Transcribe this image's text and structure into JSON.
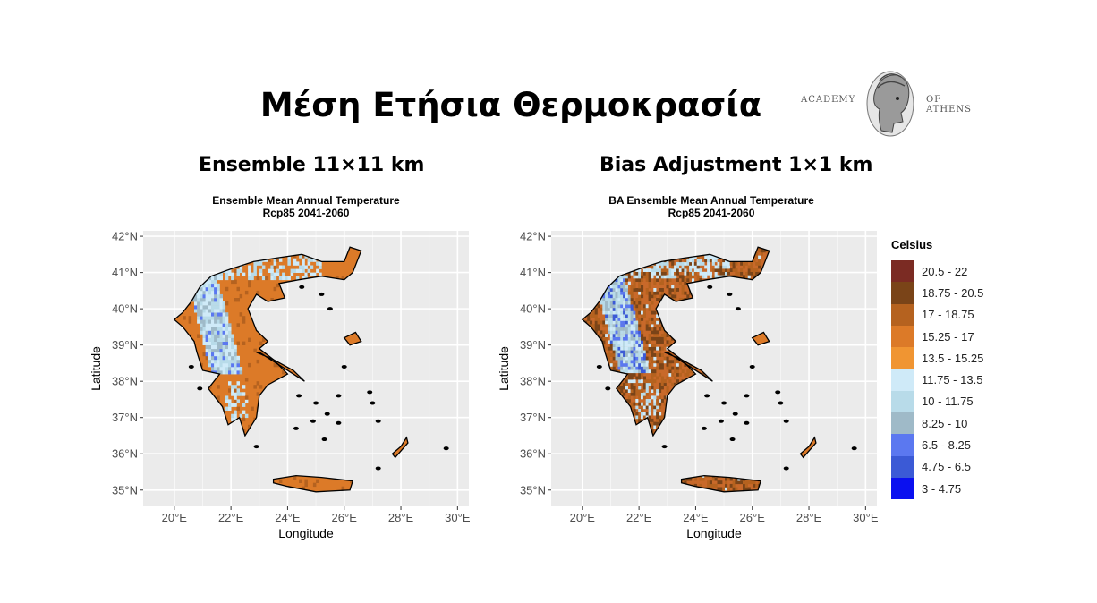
{
  "slide": {
    "title": "Μέση Ετήσια Θερμοκρασία",
    "logo": {
      "left_text": "ACADEMY",
      "right_text": "OF ATHENS"
    }
  },
  "panels": [
    {
      "subtitle": "Ensemble 11×11 km",
      "map_title_1": "Ensemble Mean Annual Temperature",
      "map_title_2": "Rcp85 2041-2060",
      "xlabel": "Longitude",
      "ylabel": "Latitude"
    },
    {
      "subtitle": "Bias Adjustment 1×1 km",
      "map_title_1": "BA Ensemble Mean Annual Temperature",
      "map_title_2": "Rcp85 2041-2060",
      "xlabel": "Longitude",
      "ylabel": "Latitude"
    }
  ],
  "axes": {
    "lon_ticks": [
      {
        "value": 20,
        "label": "20°E"
      },
      {
        "value": 22,
        "label": "22°E"
      },
      {
        "value": 24,
        "label": "24°E"
      },
      {
        "value": 26,
        "label": "26°E"
      },
      {
        "value": 28,
        "label": "28°E"
      },
      {
        "value": 30,
        "label": "30°E"
      }
    ],
    "lat_ticks": [
      {
        "value": 42,
        "label": "42°N"
      },
      {
        "value": 41,
        "label": "41°N"
      },
      {
        "value": 40,
        "label": "40°N"
      },
      {
        "value": 39,
        "label": "39°N"
      },
      {
        "value": 38,
        "label": "38°N"
      },
      {
        "value": 37,
        "label": "37°N"
      },
      {
        "value": 36,
        "label": "36°N"
      },
      {
        "value": 35,
        "label": "35°N"
      }
    ],
    "lon_range": [
      18.9,
      30.4
    ],
    "lat_range": [
      34.55,
      42.15
    ],
    "grid": true
  },
  "legend": {
    "title": "Celsius",
    "items": [
      {
        "label": "20.5 - 22",
        "color": "#7b2b23"
      },
      {
        "label": "18.75 - 20.5",
        "color": "#7a4418"
      },
      {
        "label": "17 - 18.75",
        "color": "#b5621f"
      },
      {
        "label": "15.25 - 17",
        "color": "#dc7a28"
      },
      {
        "label": "13.5 - 15.25",
        "color": "#f09532"
      },
      {
        "label": "11.75 - 13.5",
        "color": "#cfeaf8"
      },
      {
        "label": "10 - 11.75",
        "color": "#b8dbe9"
      },
      {
        "label": "8.25 - 10",
        "color": "#9fbac8"
      },
      {
        "label": "6.5 - 8.25",
        "color": "#5b78f0"
      },
      {
        "label": "4.75 - 6.5",
        "color": "#3b5ad6"
      },
      {
        "label": "3 - 4.75",
        "color": "#0a10f0"
      }
    ]
  }
}
